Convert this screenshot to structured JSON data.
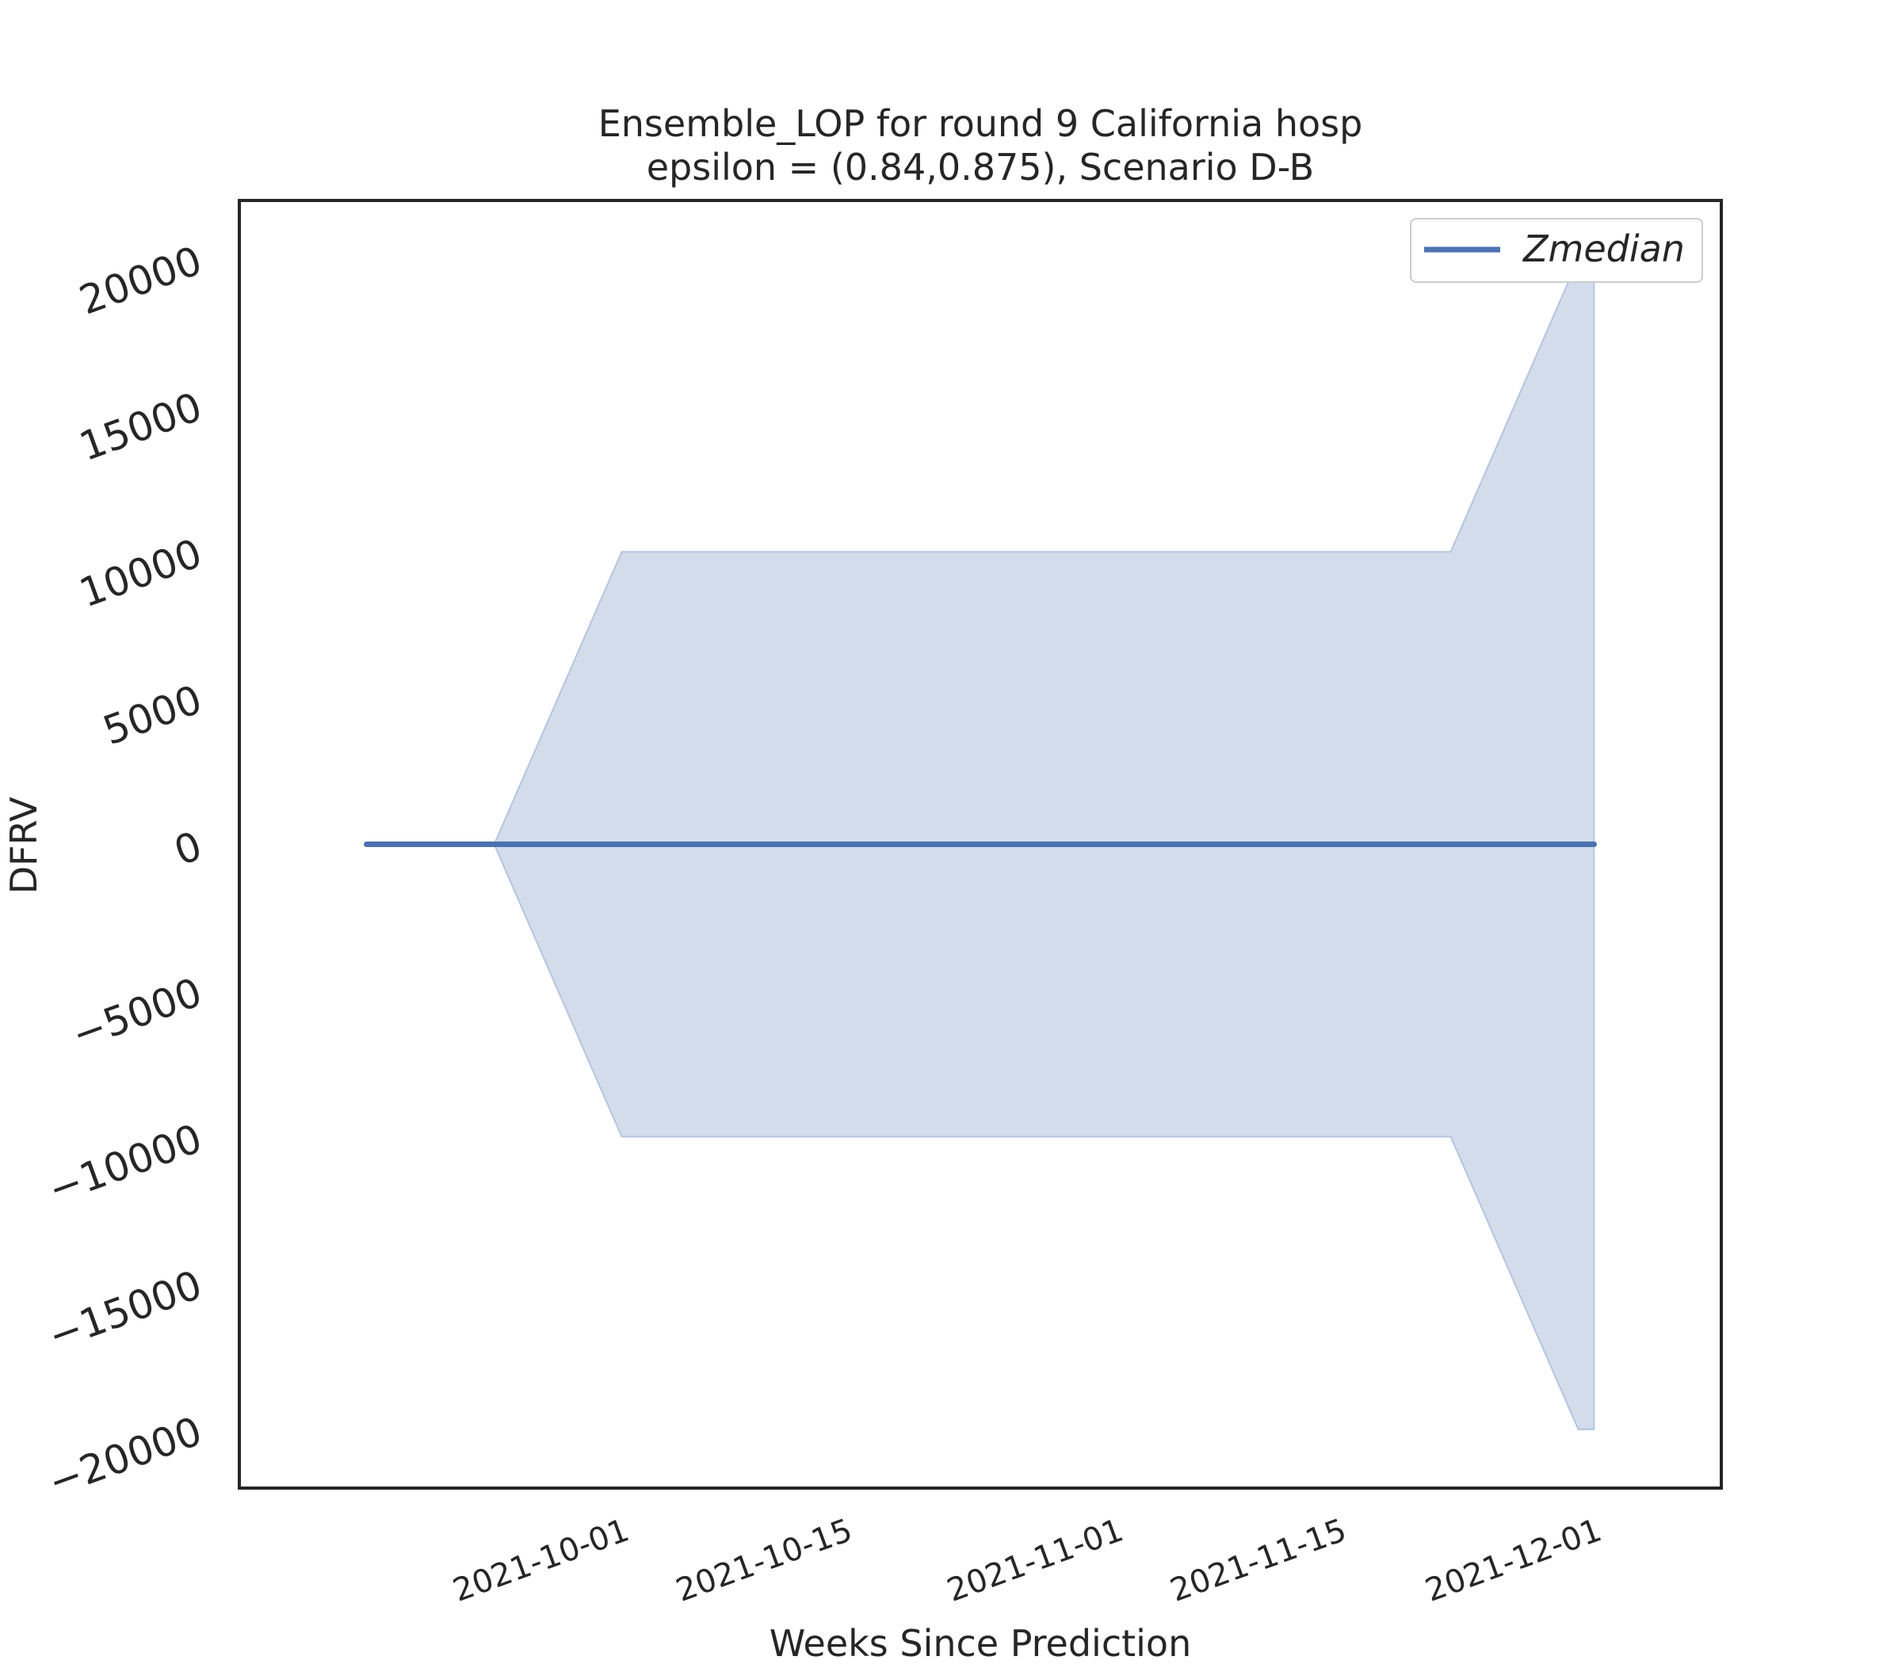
{
  "chart_data": {
    "type": "line",
    "title": "Ensemble_LOP for round 9 California  hosp",
    "subtitle": "epsilon = (0.84,0.875), Scenario D-B",
    "xlabel": "Weeks Since Prediction",
    "ylabel": "DFRV",
    "x_ticks": [
      "2021-10-01",
      "2021-10-15",
      "2021-11-01",
      "2021-11-15",
      "2021-12-01"
    ],
    "y_ticks": [
      "−20000",
      "−15000",
      "−10000",
      "−5000",
      "0",
      "5000",
      "10000",
      "15000",
      "20000"
    ],
    "y_tick_values": [
      -20000,
      -15000,
      -10000,
      -5000,
      0,
      5000,
      10000,
      15000,
      20000
    ],
    "ylim": [
      -22000,
      22000
    ],
    "xlim": [
      "2021-09-11",
      "2021-12-05"
    ],
    "x": [
      "2021-09-15",
      "2021-09-23",
      "2021-10-01",
      "2021-11-22",
      "2021-11-30",
      "2021-12-01"
    ],
    "series": [
      {
        "name": "Zmedian",
        "values": [
          0,
          0,
          0,
          0,
          0,
          0
        ],
        "color": "#4c72b0"
      }
    ],
    "band": {
      "upper": [
        0,
        0,
        10000,
        10000,
        20000,
        20000
      ],
      "lower": [
        0,
        0,
        -10000,
        -10000,
        -20000,
        -20000
      ],
      "color": "#4c72b0",
      "opacity": 0.25
    },
    "legend_position": "top-right",
    "grid": false
  }
}
